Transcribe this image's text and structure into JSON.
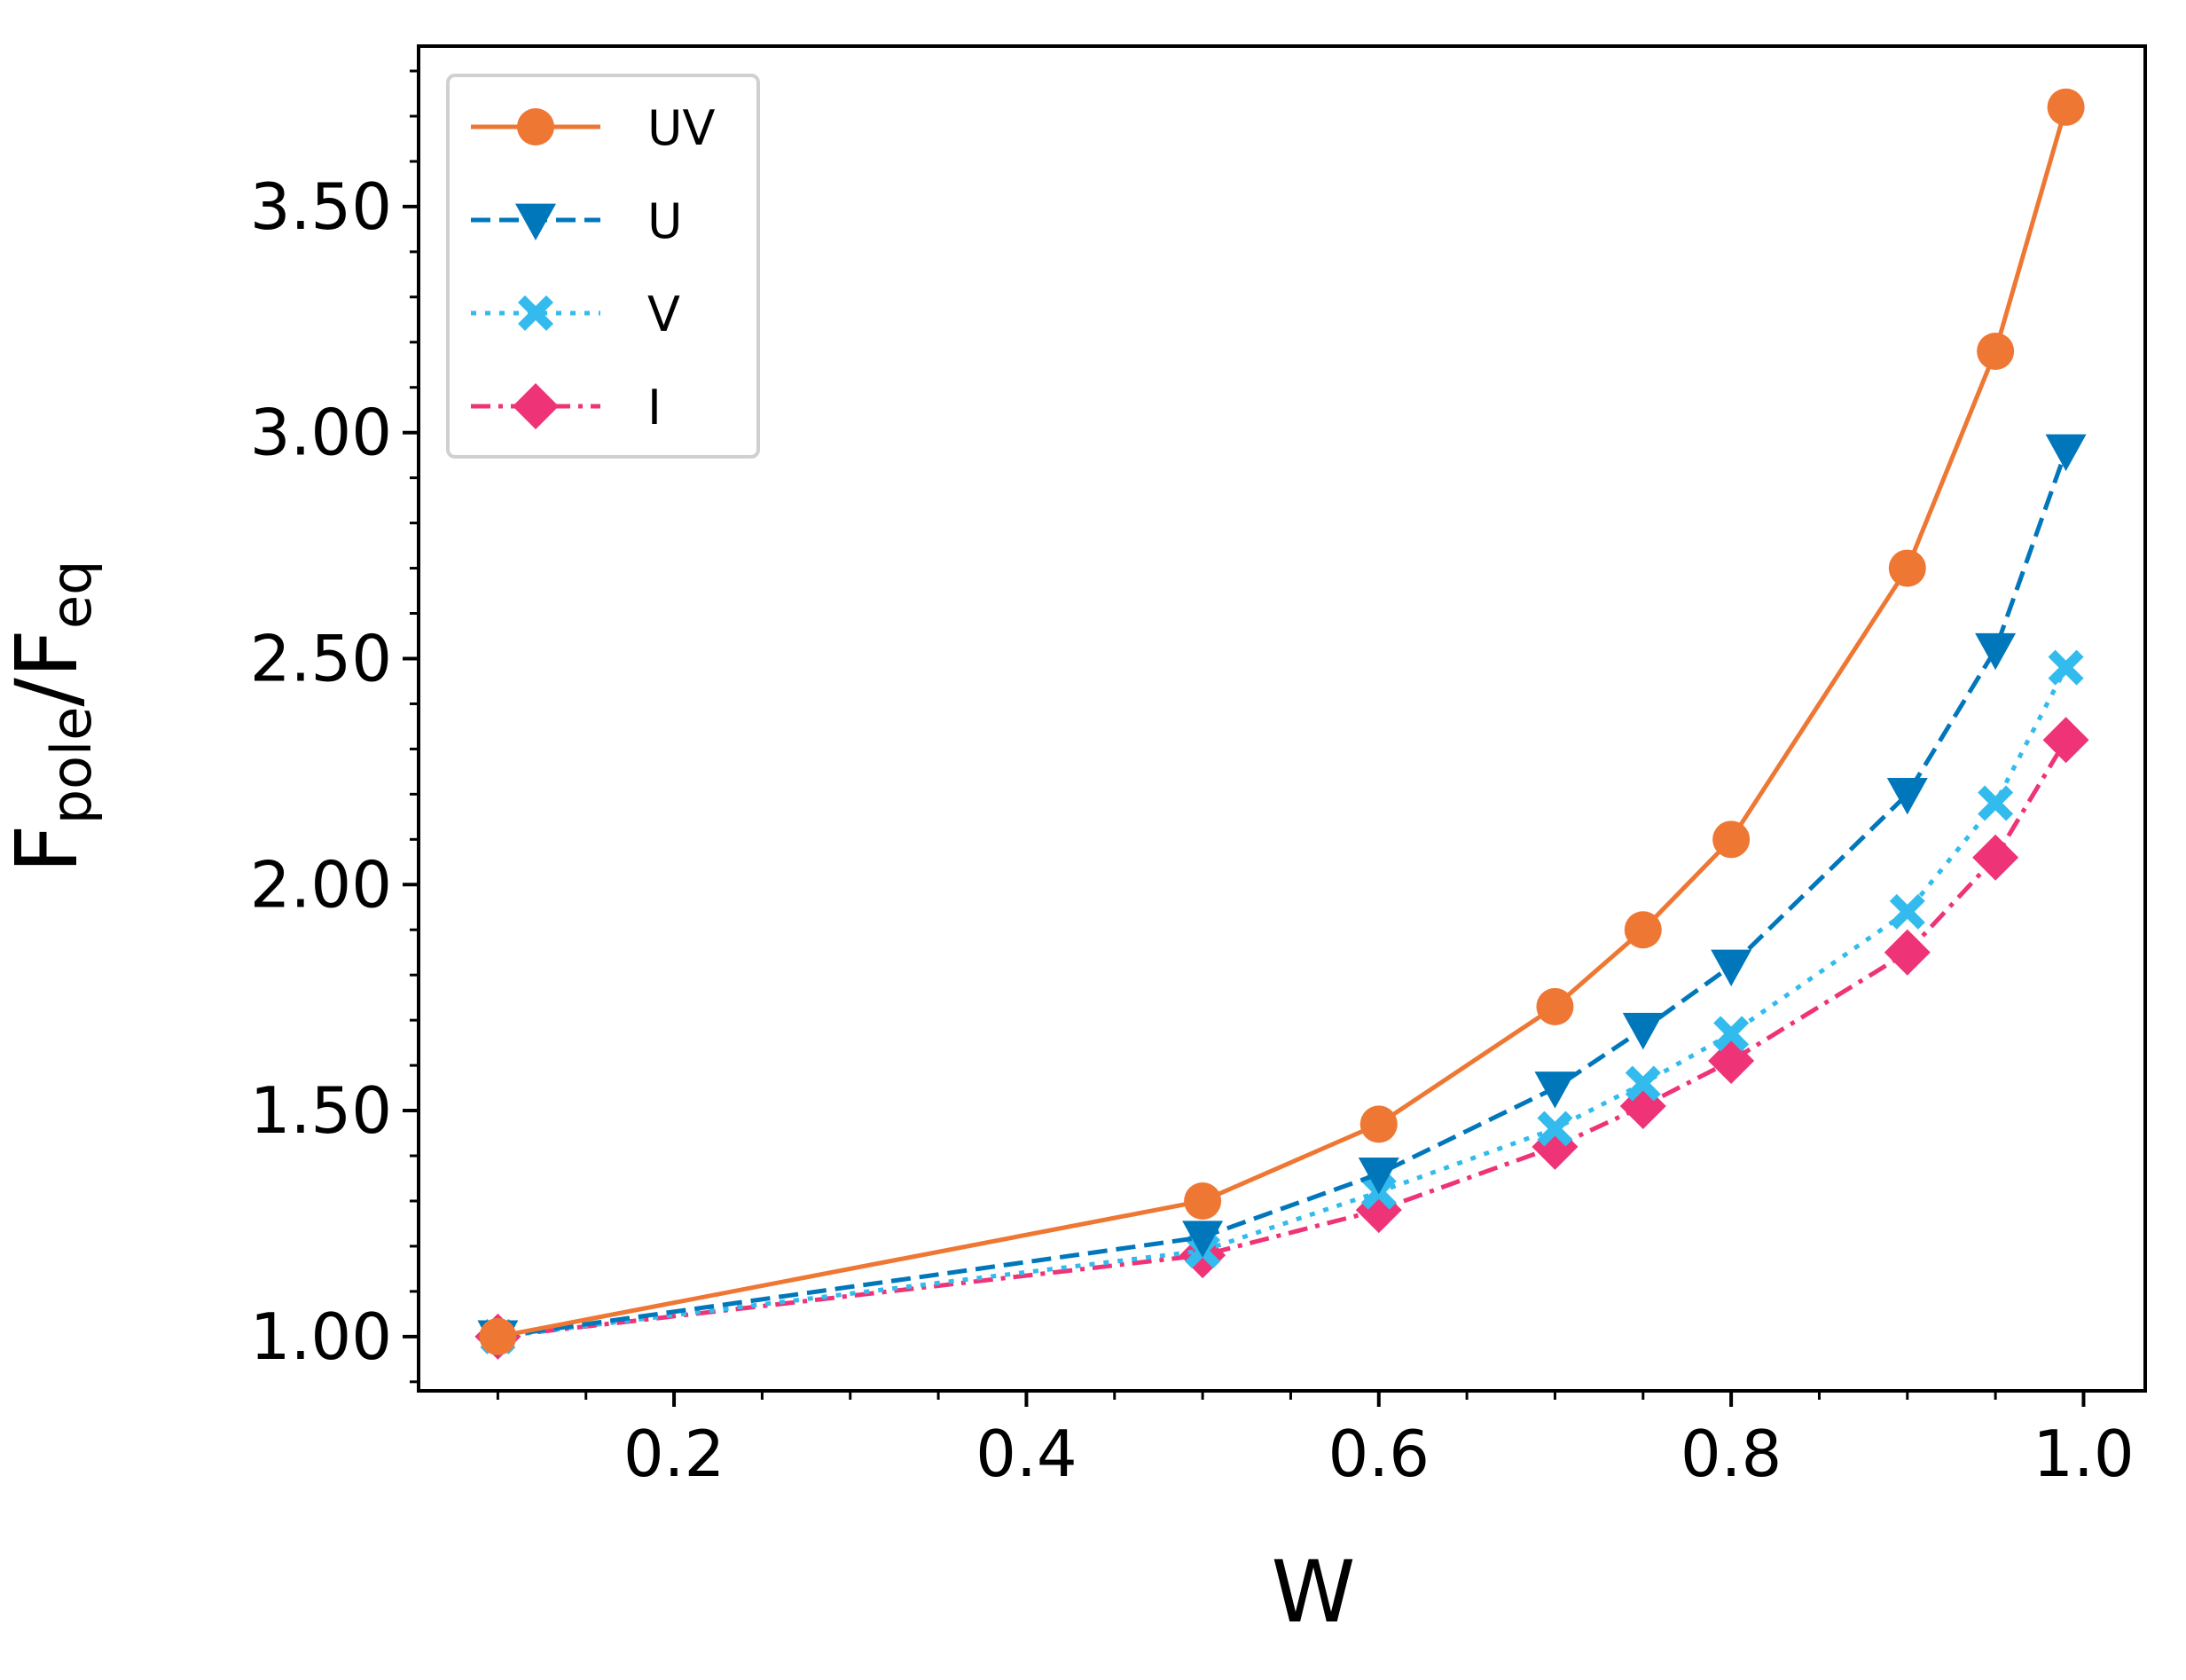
{
  "chart_data": {
    "type": "line",
    "title": "",
    "xlabel": "W",
    "ylabel": {
      "main": "F",
      "sub_1": "pole",
      "separator": "/F",
      "sub_2": "eq"
    },
    "xlim": [
      0.055,
      1.035
    ],
    "ylim": [
      0.88,
      3.855
    ],
    "x_ticks": [
      0.2,
      0.4,
      0.6,
      0.8,
      1.0
    ],
    "x_tick_labels": [
      "0.2",
      "0.4",
      "0.6",
      "0.8",
      "1.0"
    ],
    "x_minor_step": 0.05,
    "y_ticks": [
      1.0,
      1.5,
      2.0,
      2.5,
      3.0,
      3.5
    ],
    "y_tick_labels": [
      "1.00",
      "1.50",
      "2.00",
      "2.50",
      "3.00",
      "3.50"
    ],
    "y_minor_step": 0.1,
    "grid": false,
    "legend_position": "top-left",
    "x": [
      0.1,
      0.5,
      0.6,
      0.7,
      0.75,
      0.8,
      0.9,
      0.95,
      0.99
    ],
    "series": [
      {
        "name": "UV",
        "color": "#ee7733",
        "line_style": "solid",
        "marker": "circle",
        "values": [
          1.0,
          1.3,
          1.47,
          1.73,
          1.9,
          2.1,
          2.7,
          3.18,
          3.72
        ]
      },
      {
        "name": "U",
        "color": "#0077bb",
        "line_style": "dashed",
        "marker": "triangle-down",
        "values": [
          1.0,
          1.22,
          1.36,
          1.55,
          1.68,
          1.82,
          2.2,
          2.52,
          2.96
        ]
      },
      {
        "name": "V",
        "color": "#33bbee",
        "line_style": "dotted",
        "marker": "x-filled",
        "values": [
          1.0,
          1.19,
          1.32,
          1.46,
          1.56,
          1.67,
          1.94,
          2.18,
          2.48
        ]
      },
      {
        "name": "I",
        "color": "#ee3377",
        "line_style": "dashdot",
        "marker": "diamond",
        "values": [
          1.0,
          1.18,
          1.28,
          1.42,
          1.51,
          1.61,
          1.85,
          2.06,
          2.32
        ]
      }
    ]
  }
}
